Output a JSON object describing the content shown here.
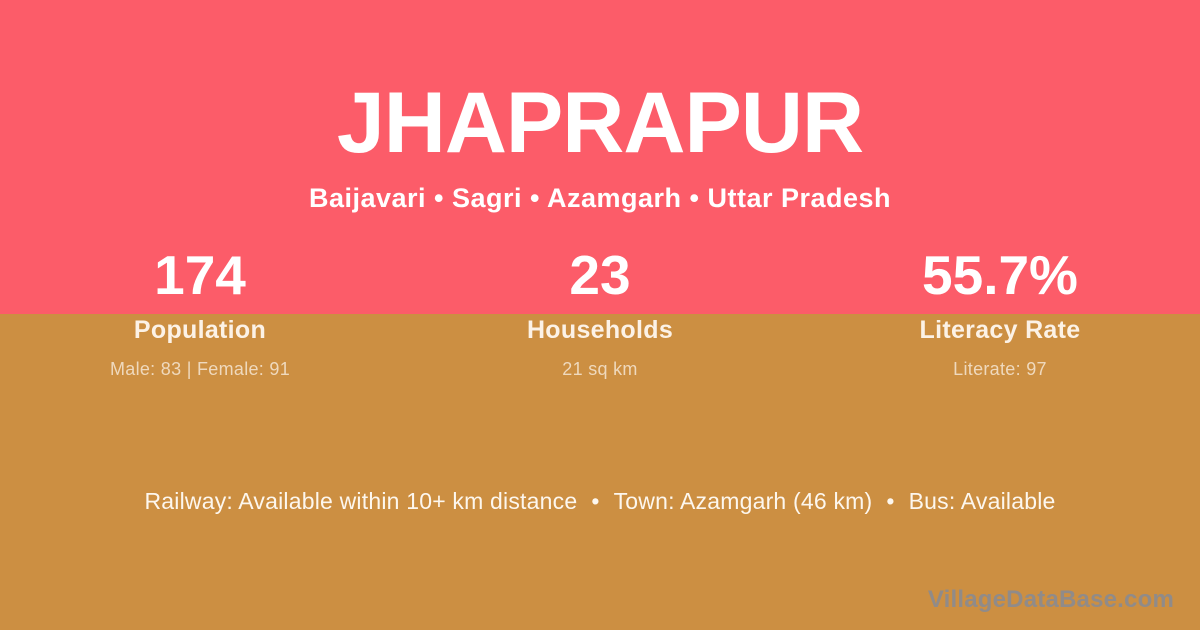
{
  "header": {
    "title": "JHAPRAPUR",
    "breadcrumb": "Baijavari • Sagri • Azamgarh • Uttar Pradesh"
  },
  "stats": [
    {
      "value": "174",
      "label": "Population",
      "detail": "Male: 83 | Female: 91"
    },
    {
      "value": "23",
      "label": "Households",
      "detail": "21 sq km"
    },
    {
      "value": "55.7%",
      "label": "Literacy Rate",
      "detail": "Literate: 97"
    }
  ],
  "footer": {
    "railway": "Railway: Available within 10+ km distance",
    "town": "Town: Azamgarh (46 km)",
    "bus": "Bus: Available",
    "separator": "•",
    "watermark": "VillageDataBase.com"
  },
  "colors": {
    "top_band": "#FC5C69",
    "bottom_band": "#CC8F42",
    "primary_text": "#FFFFFF",
    "label_text": "#FCF2E6",
    "detail_text": "#EFD9BD",
    "watermark_text": "#8B8B90"
  }
}
